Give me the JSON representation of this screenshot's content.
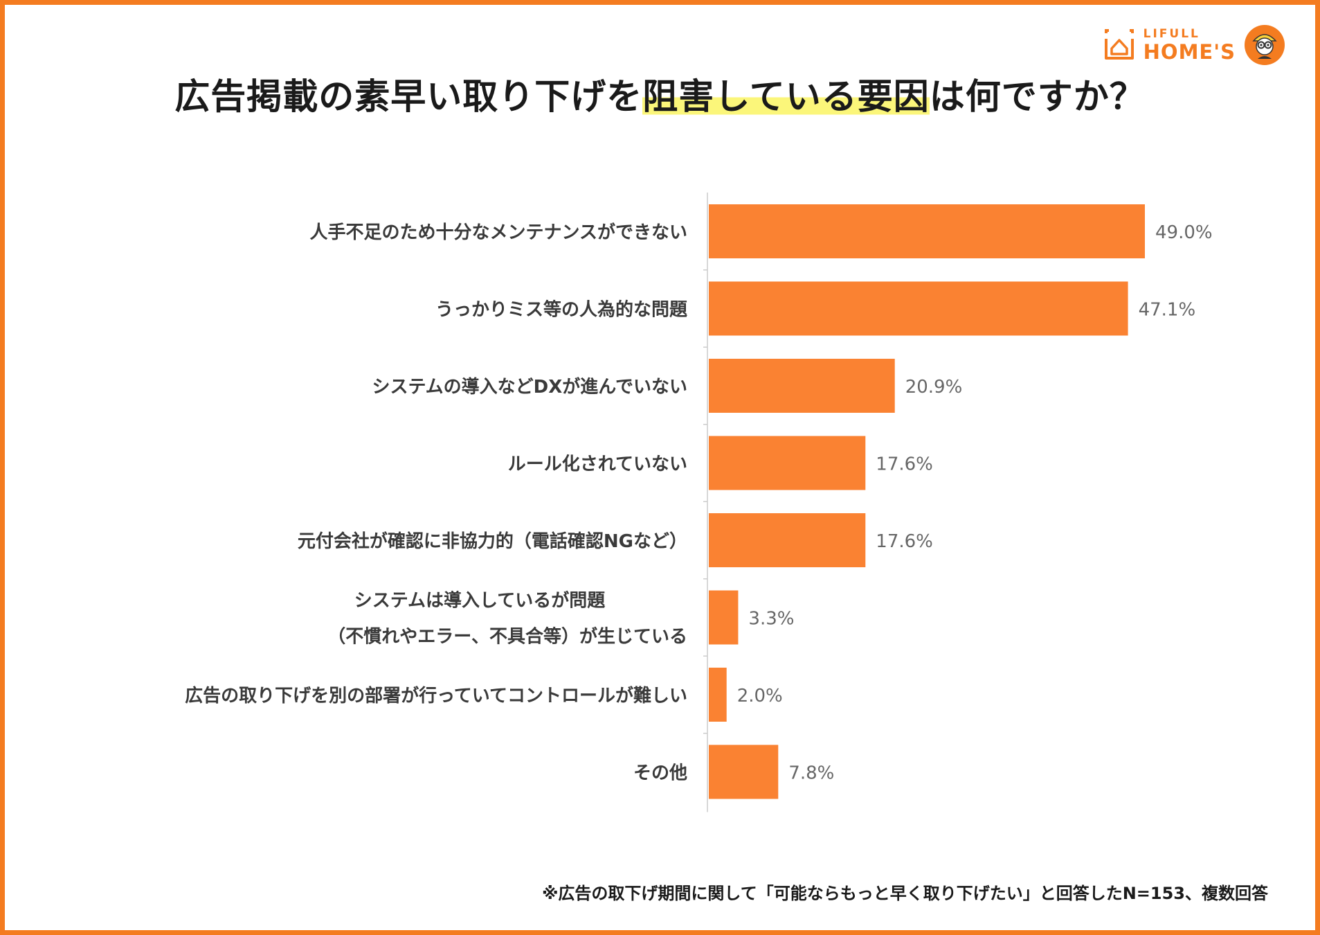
{
  "title": {
    "prefix": "広告掲載の素早い取り下げを",
    "highlight": "阻害している要因",
    "suffix": "は何ですか？"
  },
  "logo": {
    "sub": "LIFULL",
    "main": "HOME'S",
    "icon": "house-logo-icon",
    "mascot": "mascot-icon"
  },
  "colors": {
    "accent": "#f47c20",
    "bar": "#fa8232",
    "highlight": "#fbf67a"
  },
  "chart_data": {
    "type": "bar",
    "orientation": "horizontal",
    "categories": [
      [
        "人手不足のため十分なメンテナンスができない"
      ],
      [
        "うっかりミス等の人為的な問題"
      ],
      [
        "システムの導入などDXが進んでいない"
      ],
      [
        "ルール化されていない"
      ],
      [
        "元付会社が確認に非協力的（電話確認NGなど）"
      ],
      [
        "システムは導入しているが問題",
        "（不慣れやエラー、不具合等）が生じている"
      ],
      [
        "広告の取り下げを別の部署が行っていてコントロールが難しい"
      ],
      [
        "その他"
      ]
    ],
    "values": [
      49.0,
      47.1,
      20.9,
      17.6,
      17.6,
      3.3,
      2.0,
      7.8
    ],
    "value_labels": [
      "49.0%",
      "47.1%",
      "20.9%",
      "17.6%",
      "17.6%",
      "3.3%",
      "2.0%",
      "7.8%"
    ],
    "unit": "%",
    "xlim": [
      0,
      50
    ],
    "grid": false,
    "legend": "none",
    "xlabel": "",
    "ylabel": ""
  },
  "footnote": "※広告の取下げ期間に関して「可能ならもっと早く取り下げたい」と回答したN=153、複数回答"
}
